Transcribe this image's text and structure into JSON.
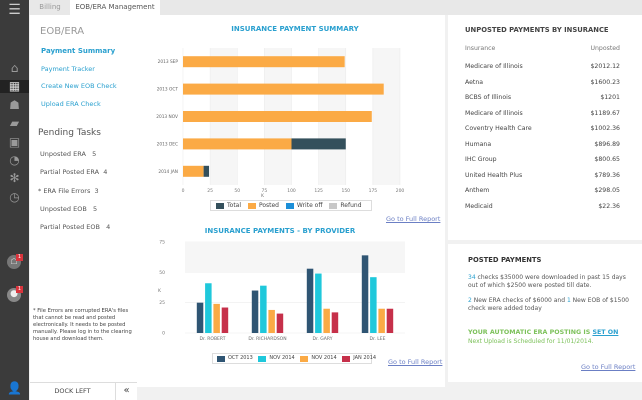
{
  "tabs": [
    "Billing",
    "EOB/ERA Management"
  ],
  "rail": {
    "icons": [
      "menu-icon",
      "home-icon",
      "calendar-icon",
      "users-icon",
      "folder-icon",
      "document-icon",
      "chart-icon",
      "gear-icon",
      "history-icon",
      "provider-alert-icon",
      "chat-icon",
      "user-icon"
    ],
    "badges": [
      "1",
      "1"
    ]
  },
  "left": {
    "title": "EOB/ERA",
    "links": [
      "Payment Summary",
      "Payment Tracker",
      "Create New EOB Check",
      "Upload ERA Check"
    ],
    "pending_title": "Pending Tasks",
    "tasks": [
      {
        "label": "Unposted ERA",
        "count": "5"
      },
      {
        "label": "Partial Posted ERA",
        "count": "4"
      },
      {
        "label": "* ERA File  Errors",
        "count": "3"
      },
      {
        "label": "Unposted EOB",
        "count": "5"
      },
      {
        "label": "Partial Posted EOB",
        "count": "4"
      }
    ],
    "note": "* File Errors are  corrupted ERA's files that cannot be read and posted electronically. It needs to be posted manually. Please log in to the clearing house and download  them.",
    "dock": "DOCK LEFT",
    "collapse": "«"
  },
  "chart_data": [
    {
      "type": "bar",
      "orientation": "horizontal",
      "stacked": true,
      "title": "INSURANCE PAYMENT SUMMARY",
      "xlabel": "K",
      "xlim": [
        0,
        200
      ],
      "xticks": [
        0,
        25,
        50,
        75,
        100,
        125,
        150,
        175,
        200
      ],
      "categories": [
        "2013  SEP",
        "2013  OCT",
        "2013  NOV",
        "2013  DEC",
        "2014  JAN"
      ],
      "series": [
        {
          "name": "Total",
          "color": "#34505c",
          "values": [
            0,
            0,
            0,
            50,
            5
          ]
        },
        {
          "name": "Posted",
          "color": "#fbaa45",
          "values": [
            149,
            185,
            174,
            100,
            19
          ]
        },
        {
          "name": "Write off",
          "color": "#1c8fd8",
          "values": [
            0,
            0,
            0,
            0,
            0
          ]
        },
        {
          "name": "Refund",
          "color": "#c8c8c8",
          "values": [
            0,
            0,
            0,
            0,
            0
          ]
        }
      ],
      "legend": "bottom",
      "link": "Go to Full Report"
    },
    {
      "type": "bar",
      "title": "INSURANCE PAYMENTS -  BY PROVIDER",
      "ylabel": "K",
      "ylim": [
        0,
        75
      ],
      "yticks": [
        0,
        25,
        50,
        75
      ],
      "categories": [
        "Dr. ROBERT",
        "Dr. RICHARDSON",
        "Dr. GARY",
        "Dr. LEE"
      ],
      "series": [
        {
          "name": "OCT 2013",
          "color": "#2f5573",
          "values": [
            25,
            35,
            53,
            64
          ]
        },
        {
          "name": "NOV 2014",
          "color": "#1fc8db",
          "values": [
            41,
            39,
            49,
            46
          ]
        },
        {
          "name": "NOV 2014",
          "color": "#fbaa45",
          "values": [
            24,
            19,
            20,
            20
          ]
        },
        {
          "name": "JAN 2014",
          "color": "#c6304a",
          "values": [
            21,
            16,
            17,
            20
          ]
        }
      ],
      "legend": "bottom",
      "link": "Go to Full Report"
    }
  ],
  "unposted": {
    "title": "UNPOSTED PAYMENTS BY INSURANCE",
    "headers": [
      "Insurance",
      "Unposted"
    ],
    "rows": [
      [
        "Medicare of Illinois",
        "$2012.12"
      ],
      [
        "Aetna",
        "$1600.23"
      ],
      [
        "BCBS of  Illinois",
        "$1201"
      ],
      [
        "Medicare of Illinois",
        "$1189.67"
      ],
      [
        "Coventry Health Care",
        "$1002.36"
      ],
      [
        "Humana",
        "$896.89"
      ],
      [
        "IHC Group",
        "$800.65"
      ],
      [
        "United Health Plus",
        "$789.36"
      ],
      [
        "Anthem",
        "$298.05"
      ],
      [
        "Medicaid",
        "$22.36"
      ]
    ]
  },
  "posted": {
    "title": "POSTED PAYMENTS",
    "p1_num": "34",
    "p1_text": " checks  $35000 were downloaded in past 15 days out of which $2500 were posted till date.",
    "p2_num1": "2",
    "p2_text1": " New ERA checks of $6000  and ",
    "p2_num2": "1",
    "p2_text2": " New EOB  of $1500  check were added today",
    "auto": "YOUR AUTOMATIC ERA POSTING  IS ",
    "auto_state": "SET ON",
    "next": "Next Upload is Scheduled for 11/01/2014.",
    "link": "Go to Full Report"
  }
}
